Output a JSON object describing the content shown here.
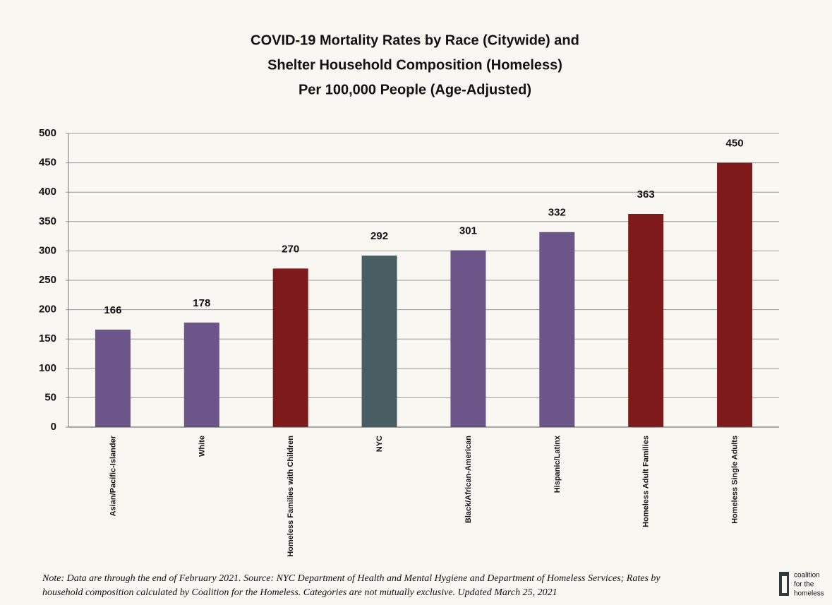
{
  "chart_data": {
    "type": "bar",
    "title": [
      "COVID-19 Mortality Rates by Race (Citywide) and",
      "Shelter Household Composition (Homeless)",
      "Per 100,000 People (Age-Adjusted)"
    ],
    "categories": [
      "Asian/Pacific-Islander",
      "White",
      "Homeless Families with Children",
      "NYC",
      "Black/African-American",
      "Hispanic/Latinx",
      "Homeless Adult Families",
      "Homeless Single Adults"
    ],
    "values": [
      166,
      178,
      270,
      292,
      301,
      332,
      363,
      450
    ],
    "colors": [
      "#6b5589",
      "#6b5589",
      "#7f1a1a",
      "#485e63",
      "#6b5589",
      "#6b5589",
      "#7f1a1a",
      "#7f1a1a"
    ],
    "ylim": [
      0,
      500
    ],
    "yticks": [
      0,
      50,
      100,
      150,
      200,
      250,
      300,
      350,
      400,
      450,
      500
    ],
    "grid": true,
    "note": "Note: Data are through the end of February 2021. Source: NYC Department of Health and Mental Hygiene and Department of Homeless Services; Rates by household composition calculated by Coalition for the Homeless. Categories are not mutually exclusive. Updated March 25, 2021"
  },
  "logo": [
    "coalition",
    "for the",
    "homeless"
  ]
}
